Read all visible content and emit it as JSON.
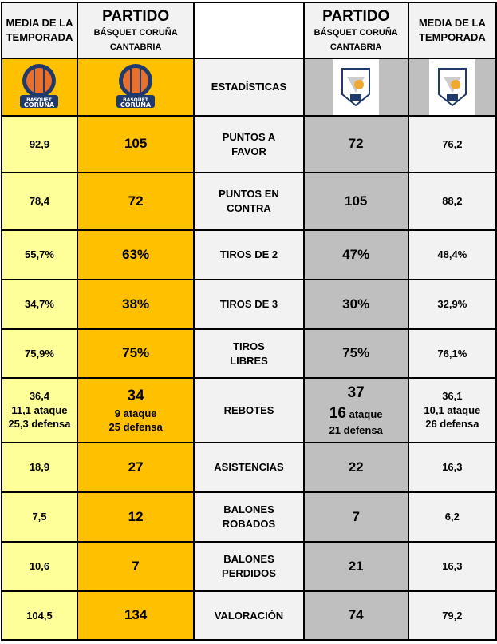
{
  "header": {
    "left_season": "MEDIA DE LA TEMPORADA",
    "left_match_title": "PARTIDO",
    "left_match_teams": "BÁSQUET CORUÑA CANTABRIA",
    "right_match_title": "PARTIDO",
    "right_match_teams": "BÁSQUET CORUÑA CANTABRIA",
    "right_season": "MEDIA DE LA TEMPORADA"
  },
  "logos": {
    "left": "Básquet Coruña logo",
    "right": "Cantabria logo",
    "center_label": "ESTADÍSTICAS"
  },
  "rows": [
    {
      "label": "PUNTOS A FAVOR",
      "lavg": "92,9",
      "lmatch": "105",
      "rmatch": "72",
      "ravg": "76,2"
    },
    {
      "label": "PUNTOS EN CONTRA",
      "lavg": "78,4",
      "lmatch": "72",
      "rmatch": "105",
      "ravg": "88,2"
    },
    {
      "label": "TIROS DE 2",
      "lavg": "55,7%",
      "lmatch": "63%",
      "rmatch": "47%",
      "ravg": "48,4%"
    },
    {
      "label": "TIROS DE 3",
      "lavg": "34,7%",
      "lmatch": "38%",
      "rmatch": "30%",
      "ravg": "32,9%"
    },
    {
      "label": "TIROS LIBRES",
      "lavg": "75,9%",
      "lmatch": "75%",
      "rmatch": "75%",
      "ravg": "76,1%"
    },
    {
      "label": "REBOTES",
      "lavg": "36,4",
      "lavg_att": "11,1 ataque",
      "lavg_def": "25,3 defensa",
      "lmatch": "34",
      "lmatch_att": "9 ataque",
      "lmatch_def": "25 defensa",
      "rmatch": "37",
      "rmatch_att_n": "16",
      "rmatch_att": "ataque",
      "rmatch_def": "21 defensa",
      "ravg": "36,1",
      "ravg_att": "10,1 ataque",
      "ravg_def": "26 defensa"
    },
    {
      "label": "ASISTENCIAS",
      "lavg": "18,9",
      "lmatch": "27",
      "rmatch": "22",
      "ravg": "16,3"
    },
    {
      "label": "BALONES ROBADOS",
      "lavg": "7,5",
      "lmatch": "12",
      "rmatch": "7",
      "ravg": "6,2"
    },
    {
      "label": "BALONES PERDIDOS",
      "lavg": "10,6",
      "lmatch": "7",
      "rmatch": "21",
      "ravg": "16,3"
    },
    {
      "label": "VALORACIÓN",
      "lavg": "104,5",
      "lmatch": "134",
      "rmatch": "74",
      "ravg": "79,2"
    }
  ]
}
